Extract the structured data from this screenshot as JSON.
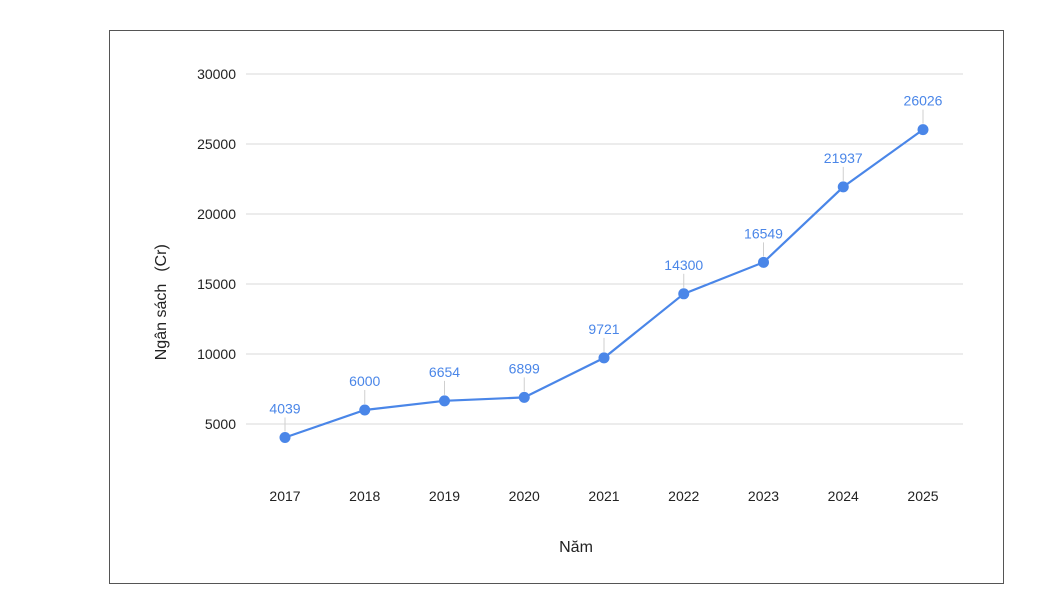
{
  "chart_data": {
    "type": "line",
    "title": "",
    "xlabel": "Năm",
    "ylabel": "Ngân sách",
    "ylabel_unit": "(Cr)",
    "categories": [
      "2017",
      "2018",
      "2019",
      "2020",
      "2021",
      "2022",
      "2023",
      "2024",
      "2025"
    ],
    "values": [
      4039,
      6000,
      6654,
      6899,
      9721,
      14300,
      16549,
      21937,
      26026
    ],
    "yticks": [
      5000,
      10000,
      15000,
      20000,
      25000,
      30000
    ],
    "ylim": [
      0,
      30000
    ],
    "grid": true,
    "legend": "none",
    "line_color": "#4a86e8"
  }
}
